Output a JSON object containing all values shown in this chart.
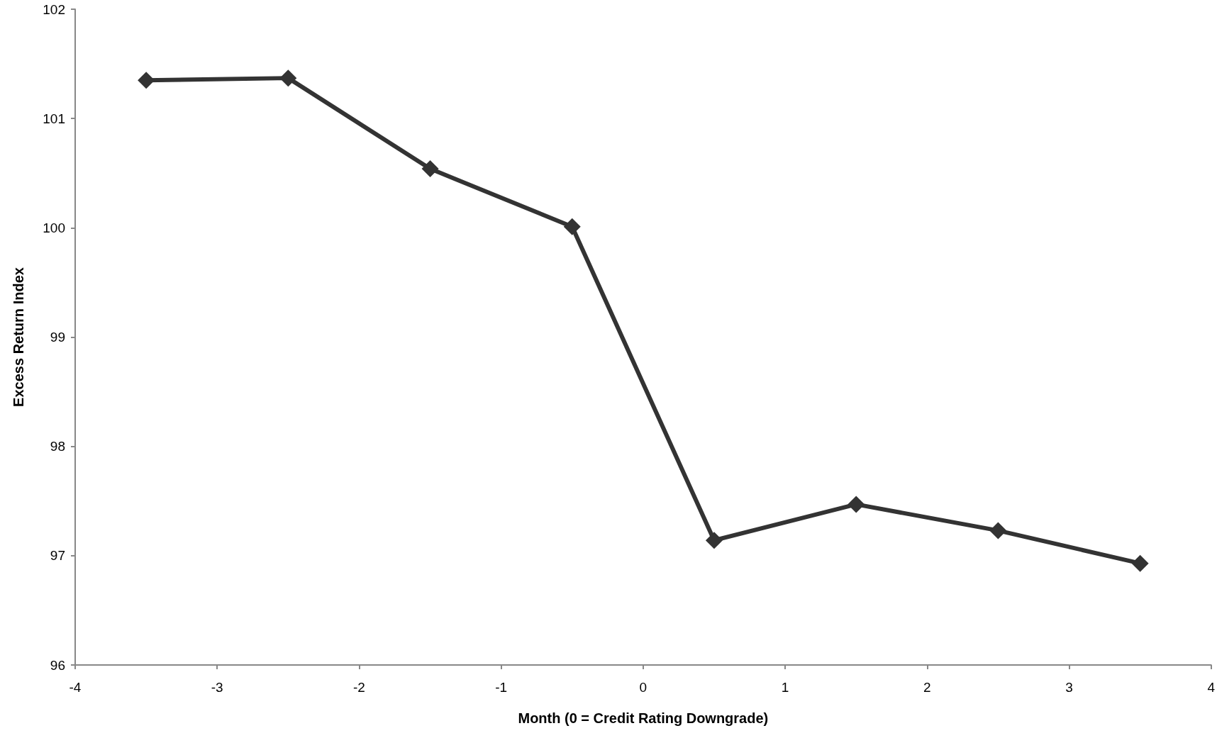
{
  "chart_data": {
    "type": "line",
    "xlabel": "Month (0 = Credit Rating Downgrade)",
    "ylabel": "Excess Return Index",
    "x": [
      -3.5,
      -2.5,
      -1.5,
      -0.5,
      0.5,
      1.5,
      2.5,
      3.5
    ],
    "series": [
      {
        "color": "#333333",
        "values": [
          101.35,
          101.37,
          100.54,
          100.01,
          97.14,
          97.47,
          97.23,
          96.93
        ]
      }
    ],
    "xlim": [
      -4,
      4
    ],
    "xticks": [
      -4,
      -3,
      -2,
      -1,
      0,
      1,
      2,
      3,
      4
    ],
    "ylim": [
      96,
      102
    ],
    "yticks": [
      96,
      97,
      98,
      99,
      100,
      101,
      102
    ],
    "grid": false,
    "marker": "diamond",
    "line_style": "solid"
  }
}
